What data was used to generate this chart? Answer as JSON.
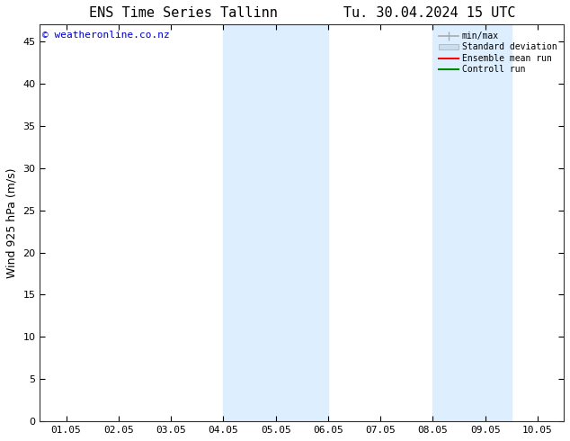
{
  "title": "ENS Time Series Tallinn        Tu. 30.04.2024 15 UTC",
  "ylabel": "Wind 925 hPa (m/s)",
  "xlabel": "",
  "watermark": "© weatheronline.co.nz",
  "yticks": [
    0,
    5,
    10,
    15,
    20,
    25,
    30,
    35,
    40,
    45
  ],
  "ylim": [
    0,
    47
  ],
  "xtick_labels": [
    "01.05",
    "02.05",
    "03.05",
    "04.05",
    "05.05",
    "06.05",
    "07.05",
    "08.05",
    "09.05",
    "10.05"
  ],
  "xtick_positions": [
    0,
    1,
    2,
    3,
    4,
    5,
    6,
    7,
    8,
    9
  ],
  "xlim": [
    -0.5,
    9.5
  ],
  "shaded_bands": [
    {
      "x_start": 3.0,
      "x_end": 5.0
    },
    {
      "x_start": 7.0,
      "x_end": 8.5
    }
  ],
  "shade_color": "#ddeeff",
  "background_color": "#ffffff",
  "plot_bg_color": "#ffffff",
  "border_color": "#333333",
  "title_fontsize": 11,
  "axis_label_fontsize": 9,
  "tick_fontsize": 8,
  "watermark_color": "#0000cc",
  "watermark_fontsize": 8,
  "legend_items": [
    {
      "label": "min/max",
      "color": "#aaaaaa",
      "lw": 1.2,
      "style": "solid"
    },
    {
      "label": "Standard deviation",
      "color": "#ccddee",
      "lw": 5,
      "style": "solid"
    },
    {
      "label": "Ensemble mean run",
      "color": "#ff0000",
      "lw": 1.5,
      "style": "solid"
    },
    {
      "label": "Controll run",
      "color": "#008800",
      "lw": 1.5,
      "style": "solid"
    }
  ]
}
